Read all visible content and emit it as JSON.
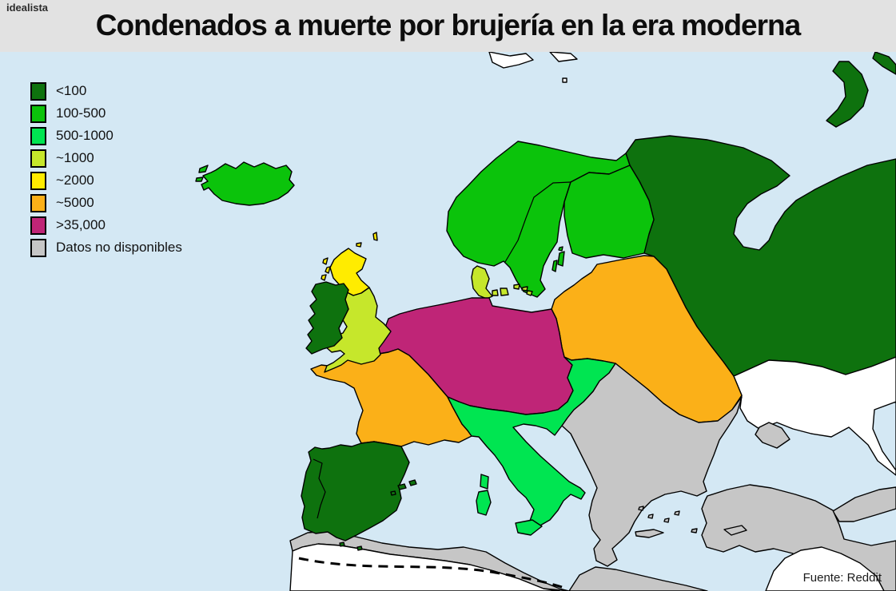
{
  "header": {
    "logo": "idealista",
    "title": "Condenados a muerte por brujería en la era moderna"
  },
  "source": "Fuente: Reddit",
  "legend": {
    "items": [
      {
        "key": "lt100",
        "label": "<100",
        "color": "#0e720e"
      },
      {
        "key": "c100_500",
        "label": "100-500",
        "color": "#0bc30b"
      },
      {
        "key": "c500_1000",
        "label": "500-1000",
        "color": "#00e551"
      },
      {
        "key": "s1000",
        "label": "~1000",
        "color": "#c6e72b"
      },
      {
        "key": "s2000",
        "label": "~2000",
        "color": "#ffec00"
      },
      {
        "key": "s5000",
        "label": "~5000",
        "color": "#fbb018"
      },
      {
        "key": "gt35000",
        "label": ">35,000",
        "color": "#bf2577"
      },
      {
        "key": "nodata",
        "label": "Datos no disponibles",
        "color": "#c6c6c6"
      }
    ]
  },
  "map": {
    "sea_color": "#d4e8f4",
    "outside_color": "#ffffff",
    "border_color": "#000000",
    "regions": {
      "iceland": "c100_500",
      "iceland-fjord-1": "c100_500",
      "iceland-fjord-2": "c100_500",
      "scandinavia": "c100_500",
      "finland": "c100_500",
      "gotland": "c100_500",
      "oland": "c100_500",
      "aland": "c100_500",
      "russia": "lt100",
      "novaya-zemlya": "lt100",
      "novaya-zemlya-2": "lt100",
      "ireland": "lt100",
      "iberia": "lt100",
      "balearic-1": "lt100",
      "balearic-2": "lt100",
      "balearic-3": "lt100",
      "ceuta": "lt100",
      "melilla": "lt100",
      "scotland": "s2000",
      "orkney": "s2000",
      "shetland": "s2000",
      "hebrides-1": "s2000",
      "hebrides-2": "s2000",
      "hebrides-3": "s2000",
      "england-wales": "s1000",
      "denmark": "s1000",
      "funen": "s1000",
      "zealand": "s1000",
      "bornholm": "s1000",
      "rugen-1": "s1000",
      "rugen-2": "s1000",
      "poland-lithuania": "s5000",
      "saaremaa-1": "s5000",
      "saaremaa-2": "s5000",
      "france": "s5000",
      "holy-roman-empire": "gt35000",
      "italy-alps-hungary": "c500_1000",
      "sicily": "c500_1000",
      "sardinia": "c500_1000",
      "corsica": "c500_1000",
      "balkans-ottoman": "nodata",
      "anatolia-ottoman": "nodata",
      "crimea": "nodata",
      "caucasus": "nodata",
      "egypt-coast": "nodata",
      "maghreb-coast": "nodata",
      "cyprus": "nodata",
      "crete": "nodata",
      "rhodes": "nodata",
      "aegean-1": "nodata",
      "aegean-2": "nodata",
      "aegean-3": "nodata",
      "aegean-4": "nodata"
    }
  }
}
